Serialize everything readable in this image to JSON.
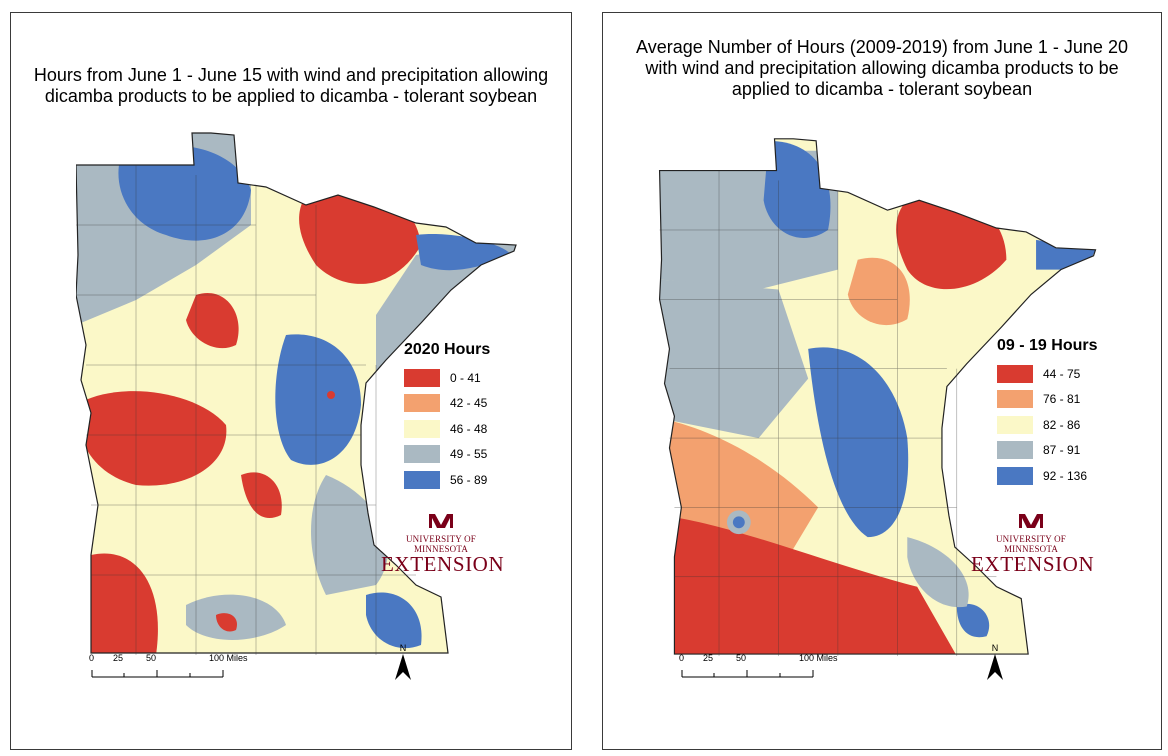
{
  "left": {
    "title_lines": [
      "Hours from June 1 - June 15 with wind and precipitation allowing",
      "dicamba products to be applied to dicamba - tolerant soybean"
    ],
    "legend": {
      "title": "2020 Hours",
      "classes": [
        {
          "label": "0 - 41",
          "color": "#d93b30"
        },
        {
          "label": "42 - 45",
          "color": "#f3a16f"
        },
        {
          "label": "46 - 48",
          "color": "#fbf8c8"
        },
        {
          "label": "49 - 55",
          "color": "#aab9c2"
        },
        {
          "label": "56 - 89",
          "color": "#4a78c2"
        }
      ]
    }
  },
  "right": {
    "title_lines": [
      "Average Number of Hours (2009-2019) from June 1 - June 20",
      "with wind and precipitation allowing dicamba products to be",
      "applied to dicamba - tolerant soybean"
    ],
    "legend": {
      "title": "09 - 19 Hours",
      "classes": [
        {
          "label": "44 - 75",
          "color": "#d93b30"
        },
        {
          "label": "76 - 81",
          "color": "#f3a16f"
        },
        {
          "label": "82 - 86",
          "color": "#fbf8c8"
        },
        {
          "label": "87 - 91",
          "color": "#aab9c2"
        },
        {
          "label": "92 - 136",
          "color": "#4a78c2"
        }
      ]
    }
  },
  "logo": {
    "mark": "M",
    "university": "UNIVERSITY OF MINNESOTA",
    "extension": "EXTENSION",
    "color": "#7a0019"
  },
  "scale_bar": {
    "ticks": [
      "0",
      "25",
      "50",
      "100 Miles"
    ]
  },
  "north_arrow": {
    "label": "N",
    "icon": "north-arrow-icon"
  }
}
